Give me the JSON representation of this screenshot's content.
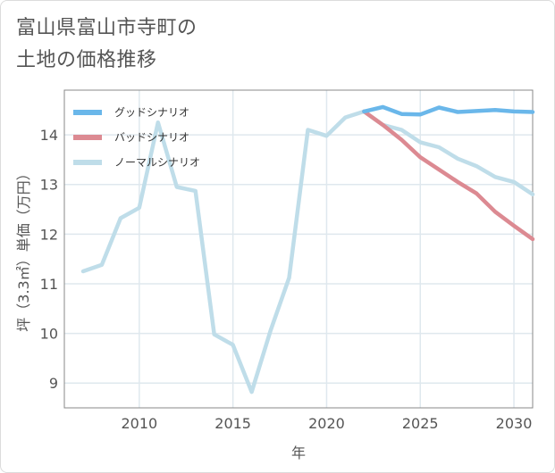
{
  "title_lines": [
    "富山県富山市寺町の",
    "土地の価格推移"
  ],
  "chart_data": {
    "type": "line",
    "title": "富山県富山市寺町の土地の価格推移",
    "xlabel": "年",
    "ylabel": "坪（3.3㎡）単価（万円）",
    "xlim": [
      2006,
      2031
    ],
    "ylim": [
      8.5,
      14.9
    ],
    "x_ticks": [
      2010,
      2015,
      2020,
      2025,
      2030
    ],
    "y_ticks": [
      9,
      10,
      11,
      12,
      13,
      14
    ],
    "grid": true,
    "legend_position": "top-left",
    "series": [
      {
        "name": "グッドシナリオ",
        "color": "#6ab7ea",
        "x": [
          2022,
          2023,
          2024,
          2025,
          2026,
          2027,
          2028,
          2029,
          2030,
          2031
        ],
        "values": [
          14.47,
          14.56,
          14.42,
          14.41,
          14.55,
          14.46,
          14.48,
          14.5,
          14.47,
          14.46
        ]
      },
      {
        "name": "バッドシナリオ",
        "color": "#dc8a92",
        "x": [
          2022,
          2023,
          2024,
          2025,
          2026,
          2027,
          2028,
          2029,
          2030,
          2031
        ],
        "values": [
          14.47,
          14.2,
          13.9,
          13.55,
          13.3,
          13.05,
          12.82,
          12.45,
          12.17,
          11.9
        ]
      },
      {
        "name": "ノーマルシナリオ",
        "color": "#bfdde9",
        "x": [
          2007,
          2008,
          2009,
          2010,
          2011,
          2012,
          2013,
          2014,
          2015,
          2016,
          2017,
          2018,
          2019,
          2020,
          2021,
          2022,
          2023,
          2024,
          2025,
          2026,
          2027,
          2028,
          2029,
          2030,
          2031
        ],
        "values": [
          11.25,
          11.38,
          12.32,
          12.53,
          14.25,
          12.95,
          12.87,
          9.98,
          9.77,
          8.82,
          10.05,
          11.12,
          14.1,
          13.98,
          14.35,
          14.47,
          14.2,
          14.1,
          13.85,
          13.75,
          13.52,
          13.37,
          13.15,
          13.05,
          12.8
        ]
      }
    ]
  }
}
